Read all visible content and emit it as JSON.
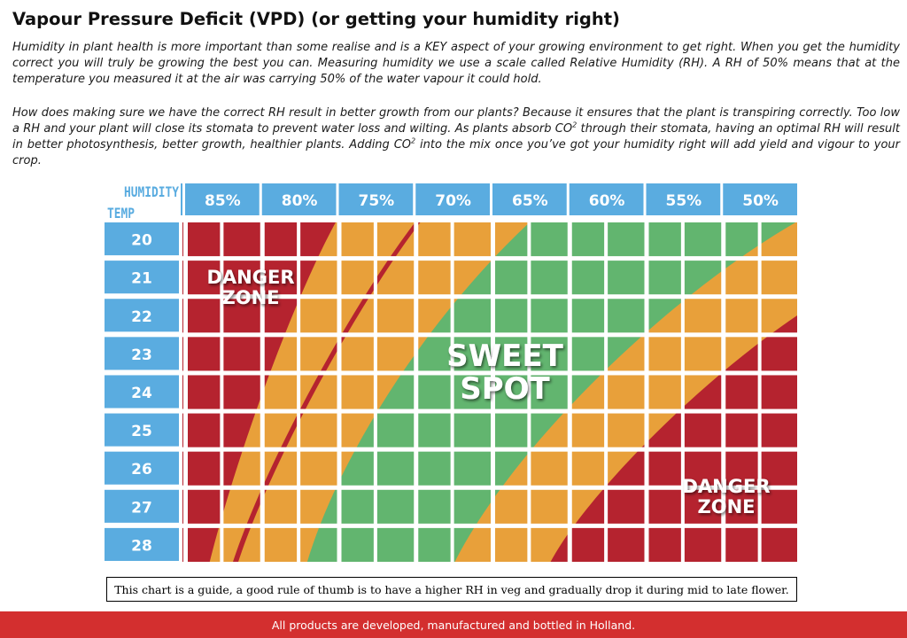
{
  "title": "Vapour Pressure Deficit (VPD) (or getting your humidity right)",
  "intro": {
    "p1": "Humidity in plant health is more important than some realise and is a KEY aspect of your growing environment to get right. When you get the humidity correct you will truly be growing the best you can. Measuring humidity we use a scale called Relative Humidity (RH). A RH of 50% means that at the temperature you measured it at the air was carrying 50% of the water vapour it could hold.",
    "p2_a": "How does making sure we have the correct RH result in better growth from our plants? Because it ensures that the plant is transpiring correctly. Too low a RH and your plant will close its stomata to prevent water loss and wilting. As plants absorb CO",
    "p2_b": " through their stomata, having an optimal RH will result in better photosynthesis, better growth, healthier plants. Adding CO",
    "p2_c": " into the mix once you’ve got your humidity right will add yield and vigour to your crop.",
    "sup": "2"
  },
  "chart_data": {
    "type": "heatmap",
    "x_axis_label": "HUMIDITY",
    "y_axis_label": "TEMP",
    "humidity_labels": [
      "85%",
      "80%",
      "75%",
      "70%",
      "65%",
      "60%",
      "55%",
      "50%"
    ],
    "temp_labels": [
      "20",
      "21",
      "22",
      "23",
      "24",
      "25",
      "26",
      "27",
      "28"
    ],
    "zones": [
      {
        "key": "danger",
        "color": "#b5232f"
      },
      {
        "key": "transition",
        "color": "#e8a03a"
      },
      {
        "key": "sweet",
        "color": "#62b56f"
      }
    ],
    "annotations": {
      "danger_top": [
        "DANGER",
        "ZONE"
      ],
      "sweet": [
        "SWEET",
        "SPOT"
      ],
      "danger_bottom": [
        "DANGER",
        "ZONE"
      ]
    },
    "colors": {
      "header_blue": "#5aace0",
      "danger": "#b5232f",
      "transition": "#e8a03a",
      "sweet": "#62b56f"
    }
  },
  "footnote": "This chart is a guide, a good rule of thumb is to have a higher RH in veg and gradually drop it during mid to late flower.",
  "footer": "All products are developed, manufactured and bottled in Holland."
}
